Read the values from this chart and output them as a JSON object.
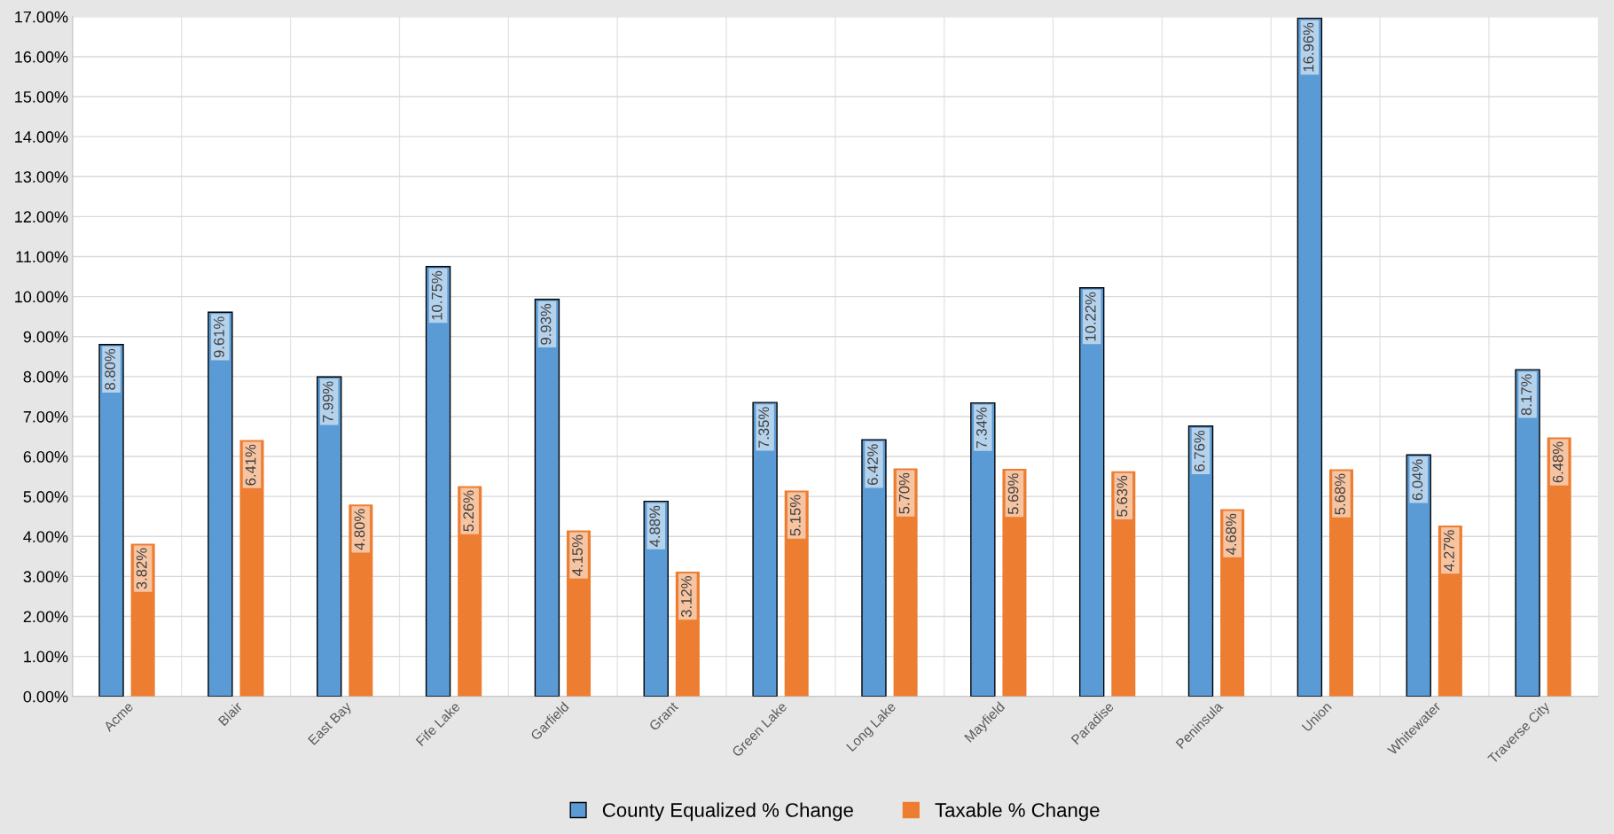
{
  "chart_data": {
    "type": "bar",
    "categories": [
      "Acme",
      "Blair",
      "East Bay",
      "Fife Lake",
      "Garfield",
      "Grant",
      "Green Lake",
      "Long Lake",
      "Mayfield",
      "Paradise",
      "Peninsula",
      "Union",
      "Whitewater",
      "Traverse City"
    ],
    "series": [
      {
        "name": "County Equalized % Change",
        "color": "#5b9bd5",
        "values": [
          8.8,
          9.61,
          7.99,
          10.75,
          9.93,
          4.88,
          7.35,
          6.42,
          7.34,
          10.22,
          6.76,
          16.96,
          6.04,
          8.17
        ],
        "value_labels": [
          "8.80%",
          "9.61%",
          "7.99%",
          "10.75%",
          "9.93%",
          "4.88%",
          "7.35%",
          "6.42%",
          "7.34%",
          "10.22%",
          "6.76%",
          "16.96%",
          "6.04%",
          "8.17%"
        ]
      },
      {
        "name": "Taxable % Change",
        "color": "#ed7d31",
        "values": [
          3.82,
          6.41,
          4.8,
          5.26,
          4.15,
          3.12,
          5.15,
          5.7,
          5.69,
          5.63,
          4.68,
          5.68,
          4.27,
          6.48
        ],
        "value_labels": [
          "3.82%",
          "6.41%",
          "4.80%",
          "5.26%",
          "4.15%",
          "3.12%",
          "5.15%",
          "5.70%",
          "5.69%",
          "5.63%",
          "4.68%",
          "5.68%",
          "4.27%",
          "6.48%"
        ]
      }
    ],
    "ylim": [
      0,
      17
    ],
    "yticks": [
      {
        "value": 0,
        "label": "0.00%"
      },
      {
        "value": 1,
        "label": "1.00%"
      },
      {
        "value": 2,
        "label": "2.00%"
      },
      {
        "value": 3,
        "label": "3.00%"
      },
      {
        "value": 4,
        "label": "4.00%"
      },
      {
        "value": 5,
        "label": "5.00%"
      },
      {
        "value": 6,
        "label": "6.00%"
      },
      {
        "value": 7,
        "label": "7.00%"
      },
      {
        "value": 8,
        "label": "8.00%"
      },
      {
        "value": 9,
        "label": "9.00%"
      },
      {
        "value": 10,
        "label": "10.00%"
      },
      {
        "value": 11,
        "label": "11.00%"
      },
      {
        "value": 12,
        "label": "12.00%"
      },
      {
        "value": 13,
        "label": "13.00%"
      },
      {
        "value": 14,
        "label": "14.00%"
      },
      {
        "value": 15,
        "label": "15.00%"
      },
      {
        "value": 16,
        "label": "16.00%"
      },
      {
        "value": 17,
        "label": "17.00%"
      }
    ],
    "grid": true,
    "legend": "bottom"
  }
}
